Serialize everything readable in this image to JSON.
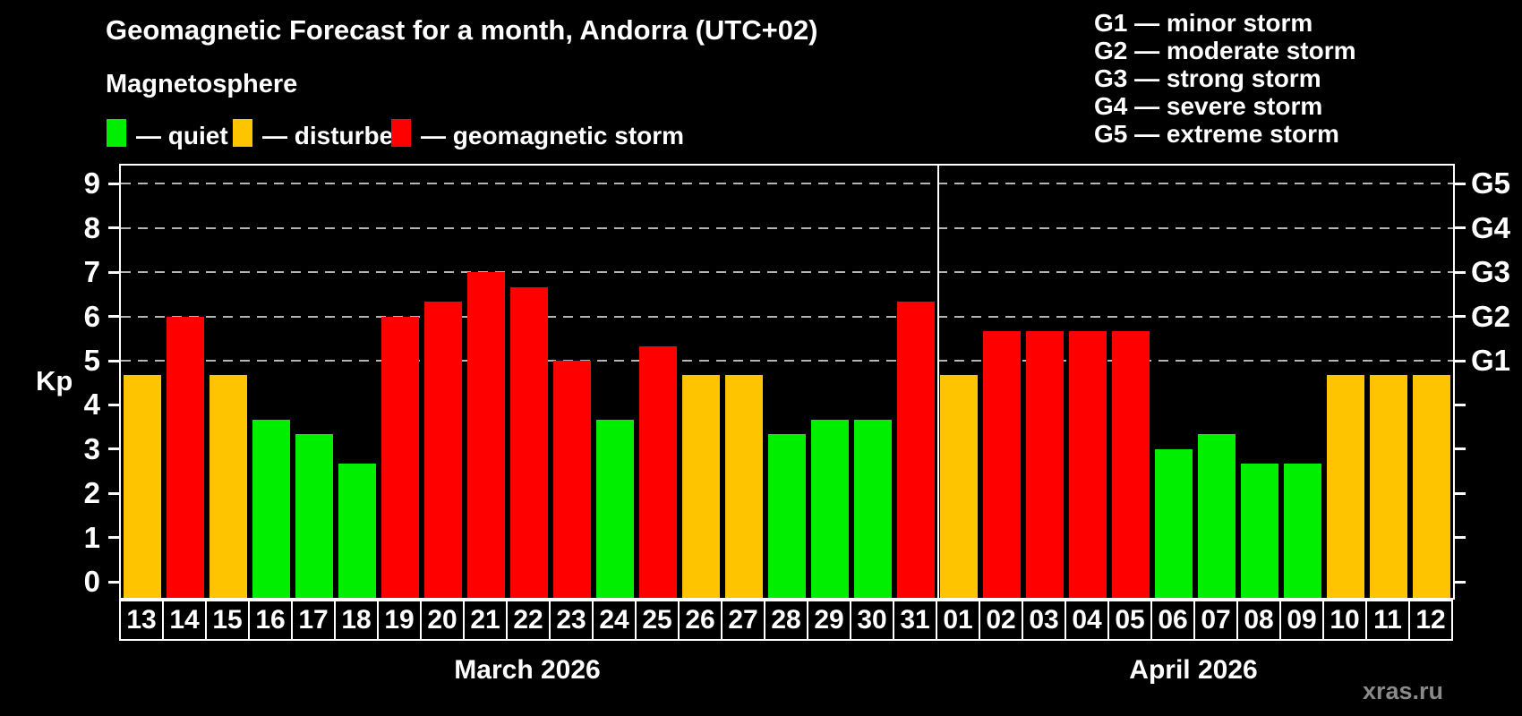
{
  "title": "Geomagnetic Forecast for a month, Andorra (UTC+02)",
  "subtitle": "Magnetosphere",
  "legend": {
    "quiet_label": "— quiet",
    "disturbed_label": "— disturbed",
    "storm_label": "— geomagnetic storm"
  },
  "g_scale": [
    "G1 — minor storm",
    "G2 — moderate storm",
    "G3 — strong storm",
    "G4 — severe storm",
    "G5 — extreme storm"
  ],
  "watermark": "xras.ru",
  "colors": {
    "quiet": "#00ee00",
    "disturbed": "#ffc400",
    "storm": "#ff0000",
    "axis": "#ffffff",
    "gridline": "#b4b4b4",
    "background": "#000000"
  },
  "chart_data": {
    "type": "bar",
    "ylabel": "Kp",
    "ylim": [
      -0.4,
      9.45
    ],
    "y_ticks": [
      0,
      1,
      2,
      3,
      4,
      5,
      6,
      7,
      8,
      9
    ],
    "grid_levels": [
      5,
      6,
      7,
      8,
      9
    ],
    "g_levels": [
      {
        "kp": 5,
        "label": "G1"
      },
      {
        "kp": 6,
        "label": "G2"
      },
      {
        "kp": 7,
        "label": "G3"
      },
      {
        "kp": 8,
        "label": "G4"
      },
      {
        "kp": 9,
        "label": "G5"
      }
    ],
    "legend_position": "top-left",
    "grid": "dashed horizontal at storm levels only",
    "months": [
      {
        "label": "March 2026",
        "days": [
          {
            "day": "13",
            "kp": 4.67,
            "status": "disturbed"
          },
          {
            "day": "14",
            "kp": 6.0,
            "status": "storm"
          },
          {
            "day": "15",
            "kp": 4.67,
            "status": "disturbed"
          },
          {
            "day": "16",
            "kp": 3.67,
            "status": "quiet"
          },
          {
            "day": "17",
            "kp": 3.33,
            "status": "quiet"
          },
          {
            "day": "18",
            "kp": 2.67,
            "status": "quiet"
          },
          {
            "day": "19",
            "kp": 6.0,
            "status": "storm"
          },
          {
            "day": "20",
            "kp": 6.33,
            "status": "storm"
          },
          {
            "day": "21",
            "kp": 7.0,
            "status": "storm"
          },
          {
            "day": "22",
            "kp": 6.67,
            "status": "storm"
          },
          {
            "day": "23",
            "kp": 5.0,
            "status": "storm"
          },
          {
            "day": "24",
            "kp": 3.67,
            "status": "quiet"
          },
          {
            "day": "25",
            "kp": 5.33,
            "status": "storm"
          },
          {
            "day": "26",
            "kp": 4.67,
            "status": "disturbed"
          },
          {
            "day": "27",
            "kp": 4.67,
            "status": "disturbed"
          },
          {
            "day": "28",
            "kp": 3.33,
            "status": "quiet"
          },
          {
            "day": "29",
            "kp": 3.67,
            "status": "quiet"
          },
          {
            "day": "30",
            "kp": 3.67,
            "status": "quiet"
          },
          {
            "day": "31",
            "kp": 6.33,
            "status": "storm"
          }
        ]
      },
      {
        "label": "April 2026",
        "days": [
          {
            "day": "01",
            "kp": 4.67,
            "status": "disturbed"
          },
          {
            "day": "02",
            "kp": 5.67,
            "status": "storm"
          },
          {
            "day": "03",
            "kp": 5.67,
            "status": "storm"
          },
          {
            "day": "04",
            "kp": 5.67,
            "status": "storm"
          },
          {
            "day": "05",
            "kp": 5.67,
            "status": "storm"
          },
          {
            "day": "06",
            "kp": 3.0,
            "status": "quiet"
          },
          {
            "day": "07",
            "kp": 3.33,
            "status": "quiet"
          },
          {
            "day": "08",
            "kp": 2.67,
            "status": "quiet"
          },
          {
            "day": "09",
            "kp": 2.67,
            "status": "quiet"
          },
          {
            "day": "10",
            "kp": 4.67,
            "status": "disturbed"
          },
          {
            "day": "11",
            "kp": 4.67,
            "status": "disturbed"
          },
          {
            "day": "12",
            "kp": 4.67,
            "status": "disturbed"
          }
        ]
      }
    ]
  }
}
